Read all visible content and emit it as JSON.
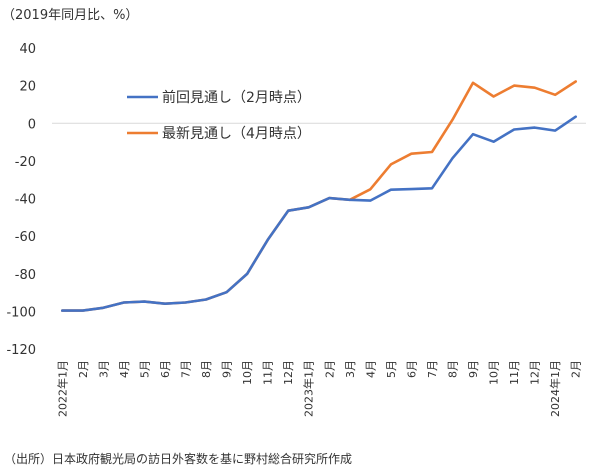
{
  "chart_data": {
    "type": "line",
    "unit_label": "（2019年同月比、%）",
    "source": "（出所）日本政府観光局の訪日外客数を基に野村総合研究所作成",
    "ylim": [
      -120,
      40
    ],
    "yticks": [
      40,
      20,
      0,
      -20,
      -40,
      -60,
      -80,
      -100,
      -120
    ],
    "categories": [
      "2022年1月",
      "2月",
      "3月",
      "4月",
      "5月",
      "6月",
      "7月",
      "8月",
      "9月",
      "10月",
      "11月",
      "12月",
      "2023年1月",
      "2月",
      "3月",
      "4月",
      "5月",
      "6月",
      "7月",
      "8月",
      "9月",
      "10月",
      "11月",
      "12月",
      "2024年1月",
      "2月"
    ],
    "grid": false,
    "legend_position": "upper-left",
    "series": [
      {
        "name": "前回見通し（2月時点）",
        "color": "#4472C4",
        "values": [
          -99.6,
          -99.6,
          -98.1,
          -95.3,
          -94.8,
          -95.9,
          -95.3,
          -93.7,
          -89.8,
          -80.1,
          -62.0,
          -46.5,
          -44.7,
          -39.8,
          -40.7,
          -41.1,
          -35.3,
          -35.0,
          -34.6,
          -18.6,
          -5.8,
          -9.8,
          -3.3,
          -2.3,
          -3.9,
          3.5
        ]
      },
      {
        "name": "最新見通し（4月時点）",
        "color": "#ED7D31",
        "values": [
          -99.6,
          -99.6,
          -98.1,
          -95.3,
          -94.8,
          -95.9,
          -95.3,
          -93.7,
          -89.8,
          -80.1,
          -62.0,
          -46.5,
          -44.7,
          -39.8,
          -40.7,
          -35.1,
          -21.9,
          -16.2,
          -15.3,
          1.9,
          21.5,
          14.2,
          20.0,
          18.9,
          15.1,
          22.2
        ]
      }
    ]
  }
}
